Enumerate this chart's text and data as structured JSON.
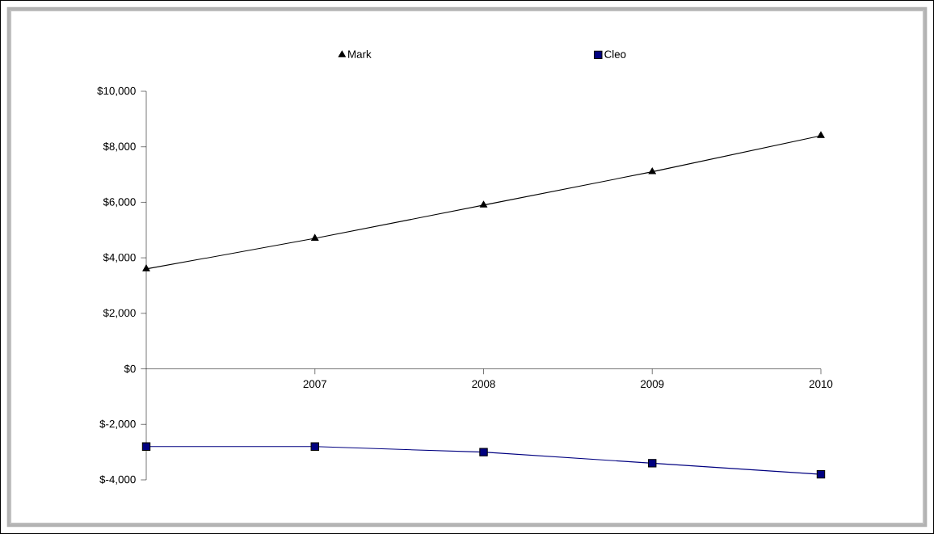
{
  "chart_data": {
    "type": "line",
    "x": [
      2006,
      2007,
      2008,
      2009,
      2010
    ],
    "series": [
      {
        "name": "Mark",
        "color": "#000000",
        "marker": "triangle",
        "values": [
          3600,
          4700,
          5900,
          7100,
          8400
        ]
      },
      {
        "name": "Cleo",
        "color": "#000080",
        "marker": "square",
        "values": [
          -2800,
          -2800,
          -3000,
          -3400,
          -3800
        ]
      }
    ],
    "xlim": [
      2006,
      2010
    ],
    "xticks": [
      2007,
      2008,
      2009,
      2010
    ],
    "ylim": [
      -4000,
      10000
    ],
    "yticks": [
      {
        "value": -4000,
        "label": "$-4,000"
      },
      {
        "value": -2000,
        "label": "$-2,000"
      },
      {
        "value": 0,
        "label": "$0"
      },
      {
        "value": 2000,
        "label": "$2,000"
      },
      {
        "value": 4000,
        "label": "$4,000"
      },
      {
        "value": 6000,
        "label": "$6,000"
      },
      {
        "value": 8000,
        "label": "$8,000"
      },
      {
        "value": 10000,
        "label": "$10,000"
      }
    ],
    "legend": "top",
    "grid": false
  }
}
